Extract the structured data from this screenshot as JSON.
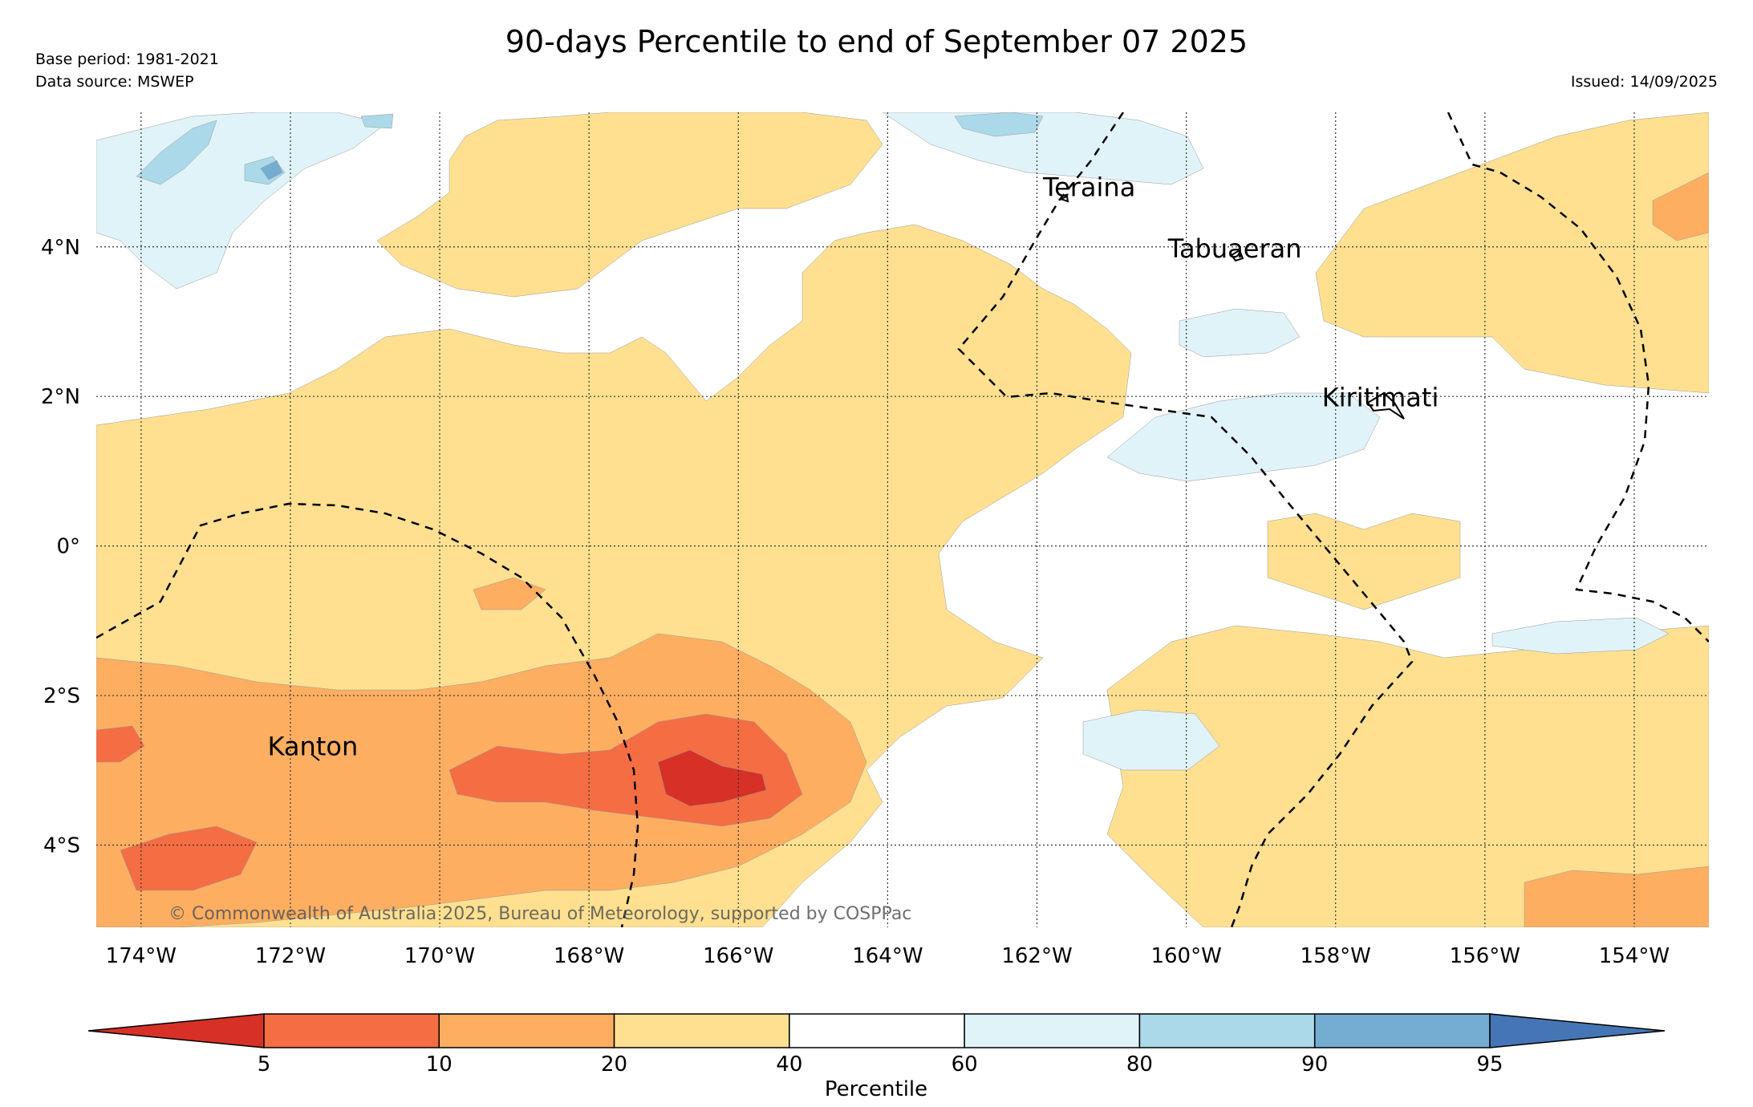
{
  "title": "90-days Percentile to end of September 07 2025",
  "base_period": "Base period: 1981-2021",
  "data_source": "Data source: MSWEP",
  "issued": "Issued: 14/09/2025",
  "copyright": "© Commonwealth of Australia 2025, Bureau of Meteorology, supported by COSPPac",
  "map": {
    "lon_range": [
      -174.6,
      -153.0
    ],
    "lat_range": [
      -5.1,
      5.8
    ],
    "lon_ticks": [
      -174,
      -172,
      -170,
      -168,
      -166,
      -164,
      -162,
      -160,
      -158,
      -156,
      -154
    ],
    "lon_tick_labels": [
      "174°W",
      "172°W",
      "170°W",
      "168°W",
      "166°W",
      "164°W",
      "162°W",
      "160°W",
      "158°W",
      "156°W",
      "154°W"
    ],
    "lat_ticks": [
      4,
      2,
      0,
      -2,
      -4
    ],
    "lat_tick_labels": [
      "4°N",
      "2°N",
      "0°",
      "2°S",
      "4°S"
    ],
    "gridlines": true,
    "places": [
      {
        "name": "Teraina",
        "lon": -161.3,
        "lat": 4.68
      },
      {
        "name": "Tabuaeran",
        "lon": -159.35,
        "lat": 3.86
      },
      {
        "name": "Kiritimati",
        "lon": -157.4,
        "lat": 1.87
      },
      {
        "name": "Kanton",
        "lon": -171.7,
        "lat": -2.8
      }
    ]
  },
  "colorbar": {
    "label": "Percentile",
    "ticks": [
      "5",
      "10",
      "20",
      "40",
      "60",
      "80",
      "90",
      "95"
    ],
    "colors": {
      "below_5": "#d73027",
      "5-10": "#f46d43",
      "10-20": "#fdae61",
      "20-40": "#fee090",
      "40-60": "#ffffff",
      "60-80": "#e0f3f8",
      "80-90": "#abd9e9",
      "90-95": "#74add1",
      "above_95": "#4575b4"
    }
  }
}
